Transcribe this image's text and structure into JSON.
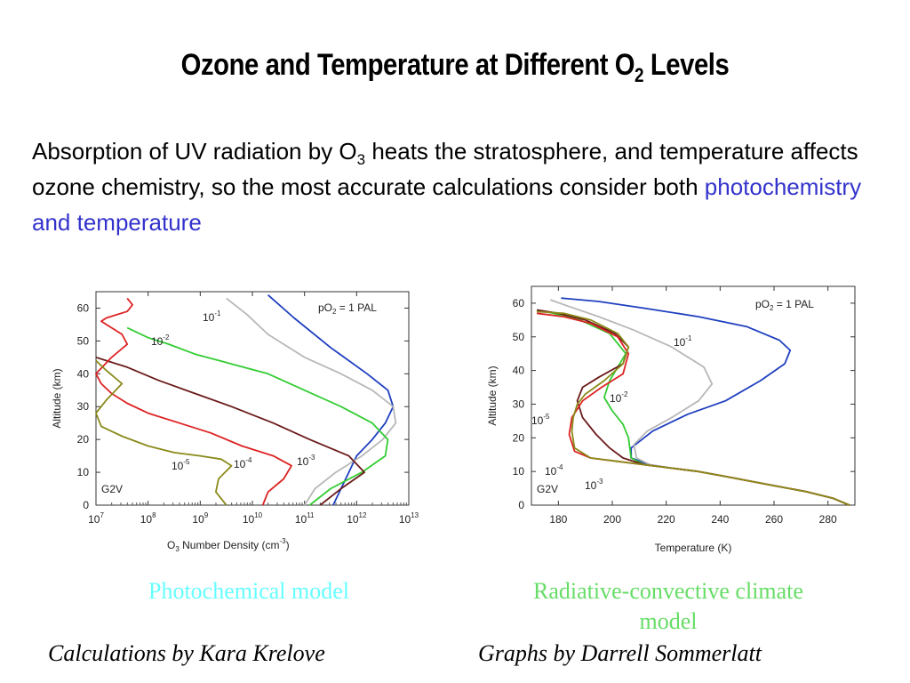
{
  "slide": {
    "title_main": "Ozone and Temperature at Different O",
    "title_sub": "2",
    "title_end": " Levels",
    "body_1": "Absorption of UV radiation by O",
    "body_sub": "3",
    "body_2": " heats the stratosphere, and temperature affects ozone chemistry, so the most accurate calculations consider both ",
    "body_highlight": "photochemistry and temperature",
    "caption_left": "Photochemical model",
    "caption_right": "Radiative-convective climate model",
    "credit_left": "Calculations by Kara Krelove",
    "credit_right": "Graphs by Darrell Sommerlatt"
  },
  "colors": {
    "caption_left": "#66ffff",
    "caption_right": "#66dd66",
    "highlight": "#3333cc"
  },
  "chart_data": [
    {
      "type": "line",
      "xlabel": "O3 Number Density (cm-3)",
      "ylabel": "Altitude (km)",
      "xscale": "log",
      "xlim": [
        7,
        13
      ],
      "ylim": [
        0,
        65
      ],
      "xticks": [
        "10^7",
        "10^8",
        "10^9",
        "10^10",
        "10^11",
        "10^12",
        "10^13"
      ],
      "yticks": [
        0,
        10,
        20,
        30,
        40,
        50,
        60
      ],
      "corner_label": "G2V",
      "series": [
        {
          "name": "pO2 = 1 PAL",
          "color": "#1f3fbf",
          "x": [
            11.55,
            11.7,
            11.85,
            12.0,
            12.3,
            12.55,
            12.7,
            12.6,
            12.2,
            11.5,
            10.8,
            10.3
          ],
          "y": [
            0,
            5,
            10,
            15,
            20,
            25,
            30,
            35,
            40,
            48,
            57,
            64
          ]
        },
        {
          "name": "10-1",
          "color": "#b8b8b8",
          "x": [
            11.0,
            11.2,
            11.6,
            12.1,
            12.5,
            12.75,
            12.7,
            12.3,
            11.7,
            11.0,
            10.3,
            9.9,
            9.5
          ],
          "y": [
            0,
            5,
            10,
            15,
            20,
            25,
            30,
            35,
            40,
            45,
            52,
            58,
            63
          ]
        },
        {
          "name": "10-2",
          "color": "#33cc33",
          "x": [
            11.1,
            11.5,
            12.1,
            12.55,
            12.6,
            12.3,
            11.7,
            11.0,
            10.3,
            9.6,
            8.9,
            8.4,
            8.0,
            7.6
          ],
          "y": [
            0,
            5,
            10,
            15,
            20,
            25,
            30,
            35,
            40,
            43,
            46,
            49,
            51,
            54
          ]
        },
        {
          "name": "10-3",
          "color": "#6b1a1a",
          "x": [
            11.3,
            11.7,
            12.15,
            11.85,
            11.1,
            10.4,
            9.6,
            8.9,
            8.2,
            7.6,
            7.2,
            7.0
          ],
          "y": [
            0,
            5,
            10,
            15,
            20,
            25,
            30,
            34,
            38,
            42,
            44,
            45
          ]
        },
        {
          "name": "10-4",
          "color": "#dd2222",
          "x": [
            10.2,
            10.3,
            10.6,
            10.75,
            10.4,
            9.8,
            9.2,
            8.6,
            8.0,
            7.6,
            7.3,
            7.1,
            7.0,
            7.3,
            7.6,
            7.5,
            7.3,
            7.1,
            7.2,
            7.6,
            7.7,
            7.6
          ],
          "y": [
            0,
            4,
            8,
            12,
            15,
            18,
            22,
            25,
            28,
            31,
            34,
            37,
            40,
            45,
            49,
            52,
            54,
            56,
            57,
            59,
            61,
            63
          ]
        },
        {
          "name": "10-5",
          "color": "#8a8a1a",
          "x": [
            9.5,
            9.3,
            9.35,
            9.6,
            9.4,
            9.0,
            8.5,
            8.0,
            7.5,
            7.1,
            7.0,
            7.2,
            7.5,
            7.2,
            7.0
          ],
          "y": [
            0,
            4,
            8,
            12,
            14,
            15,
            16,
            18,
            21,
            24,
            28,
            32,
            37,
            41,
            44
          ]
        }
      ]
    },
    {
      "type": "line",
      "xlabel": "Temperature (K)",
      "ylabel": "Altitude (km)",
      "xlim": [
        170,
        290
      ],
      "ylim": [
        0,
        65
      ],
      "xticks": [
        180,
        200,
        220,
        240,
        260,
        280
      ],
      "yticks": [
        0,
        10,
        20,
        30,
        40,
        50,
        60
      ],
      "corner_label": "G2V",
      "series": [
        {
          "name": "pO2 = 1 PAL",
          "color": "#1f3fbf",
          "x": [
            288,
            282,
            272,
            262,
            252,
            242,
            232,
            222,
            214,
            207,
            207,
            215,
            228,
            242,
            255,
            264,
            266,
            262,
            250,
            232,
            212,
            195,
            181
          ],
          "y": [
            0,
            2,
            4,
            5.5,
            7,
            8.5,
            10,
            11,
            12,
            14,
            17,
            22,
            27,
            31,
            37,
            42,
            46,
            49,
            53,
            56,
            58.5,
            60.5,
            61.5
          ]
        },
        {
          "name": "10-1",
          "color": "#b8b8b8",
          "x": [
            288,
            282,
            272,
            262,
            252,
            242,
            232,
            222,
            214,
            209,
            208,
            213,
            222,
            232,
            237,
            234,
            222,
            208,
            195,
            184,
            177
          ],
          "y": [
            0,
            2,
            4,
            5.5,
            7,
            8.5,
            10,
            11,
            12,
            14,
            18,
            22,
            26,
            31,
            36,
            41,
            47,
            52,
            56,
            59,
            61
          ]
        },
        {
          "name": "10-2",
          "color": "#33cc33",
          "x": [
            288,
            282,
            272,
            262,
            252,
            242,
            232,
            222,
            212,
            207,
            206,
            204,
            200,
            197,
            199,
            205,
            199,
            188,
            178,
            172
          ],
          "y": [
            0,
            2,
            4,
            5.5,
            7,
            8.5,
            10,
            11,
            12,
            14,
            20,
            24,
            28,
            32,
            37,
            45,
            51,
            55,
            57,
            58
          ]
        },
        {
          "name": "10-3",
          "color": "#6b1a1a",
          "x": [
            288,
            282,
            272,
            262,
            252,
            242,
            232,
            222,
            212,
            204,
            199,
            194,
            189,
            187,
            189,
            195,
            204,
            206,
            201,
            190,
            180,
            172
          ],
          "y": [
            0,
            2,
            4,
            5.5,
            7,
            8.5,
            10,
            11,
            12,
            14,
            17,
            21,
            26,
            31,
            35,
            38,
            42,
            47,
            51,
            55,
            57,
            58
          ]
        },
        {
          "name": "10-4",
          "color": "#dd2222",
          "x": [
            288,
            282,
            272,
            262,
            252,
            242,
            232,
            222,
            212,
            202,
            192,
            186,
            184,
            185,
            189,
            196,
            204,
            206,
            202,
            192,
            182,
            172
          ],
          "y": [
            0,
            2,
            4,
            5.5,
            7,
            8.5,
            10,
            11,
            12,
            13,
            14,
            16,
            21,
            26,
            31,
            35,
            39,
            45,
            50,
            54,
            56,
            57
          ]
        },
        {
          "name": "10-5",
          "color": "#8a8a1a",
          "x": [
            288,
            282,
            272,
            262,
            252,
            242,
            232,
            222,
            212,
            202,
            192,
            186,
            185,
            185.5,
            187,
            190,
            197,
            204,
            206,
            202,
            192,
            182,
            172
          ],
          "y": [
            0,
            2,
            4,
            5.5,
            7,
            8.5,
            10,
            11,
            12,
            13,
            14,
            17,
            22,
            26,
            30,
            33,
            37,
            42,
            47,
            51,
            55,
            57,
            57.5
          ]
        }
      ]
    }
  ]
}
